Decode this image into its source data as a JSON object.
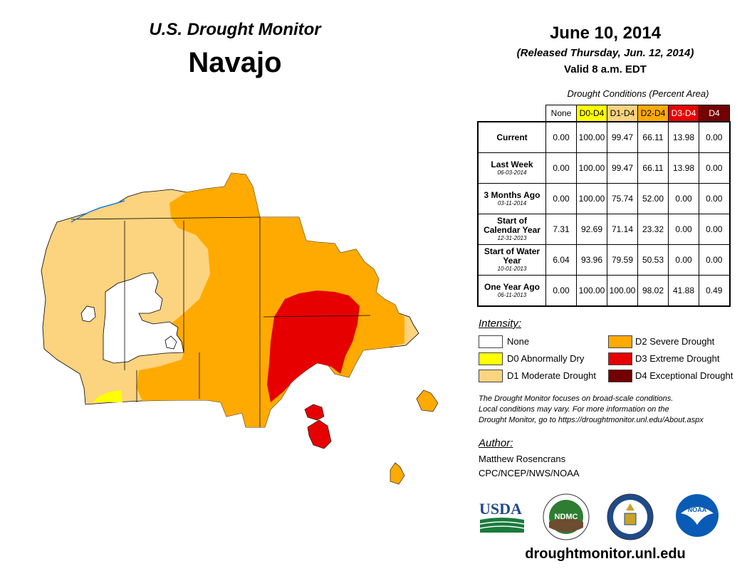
{
  "header": {
    "title": "U.S. Drought Monitor",
    "region": "Navajo"
  },
  "date_block": {
    "date": "June 10, 2014",
    "released": "(Released Thursday, Jun. 12, 2014)",
    "valid": "Valid 8 a.m. EDT"
  },
  "table": {
    "caption": "Drought Conditions (Percent Area)",
    "columns": [
      {
        "label": "None",
        "color": "#ffffff",
        "text_color": "#000000"
      },
      {
        "label": "D0-D4",
        "color": "#ffff00",
        "text_color": "#000000"
      },
      {
        "label": "D1-D4",
        "color": "#fcd37f",
        "text_color": "#000000"
      },
      {
        "label": "D2-D4",
        "color": "#ffaa00",
        "text_color": "#000000"
      },
      {
        "label": "D3-D4",
        "color": "#e60000",
        "text_color": "#ffffff"
      },
      {
        "label": "D4",
        "color": "#730000",
        "text_color": "#ffffff"
      }
    ],
    "rows": [
      {
        "label": "Current",
        "date": "",
        "values": [
          "0.00",
          "100.00",
          "99.47",
          "66.11",
          "13.98",
          "0.00"
        ]
      },
      {
        "label": "Last Week",
        "date": "06-03-2014",
        "values": [
          "0.00",
          "100.00",
          "99.47",
          "66.11",
          "13.98",
          "0.00"
        ]
      },
      {
        "label": "3 Months Ago",
        "date": "03-11-2014",
        "values": [
          "0.00",
          "100.00",
          "75.74",
          "52.00",
          "0.00",
          "0.00"
        ]
      },
      {
        "label": "Start of Calendar Year",
        "date": "12-31-2013",
        "values": [
          "7.31",
          "92.69",
          "71.14",
          "23.32",
          "0.00",
          "0.00"
        ]
      },
      {
        "label": "Start of Water Year",
        "date": "10-01-2013",
        "values": [
          "6.04",
          "93.96",
          "79.59",
          "50.53",
          "0.00",
          "0.00"
        ]
      },
      {
        "label": "One Year Ago",
        "date": "06-11-2013",
        "values": [
          "0.00",
          "100.00",
          "100.00",
          "98.02",
          "41.88",
          "0.49"
        ]
      }
    ]
  },
  "legend": {
    "heading": "Intensity:",
    "items": [
      {
        "label": "None",
        "color": "#ffffff"
      },
      {
        "label": "D0 Abnormally Dry",
        "color": "#ffff00"
      },
      {
        "label": "D1 Moderate Drought",
        "color": "#fcd37f"
      },
      {
        "label": "D2 Severe Drought",
        "color": "#ffaa00"
      },
      {
        "label": "D3 Extreme Drought",
        "color": "#e60000"
      },
      {
        "label": "D4 Exceptional Drought",
        "color": "#730000"
      }
    ]
  },
  "disclaimer": {
    "line1": "The Drought Monitor focuses on broad-scale conditions.",
    "line2": "Local conditions may vary. For more information on the",
    "line3": "Drought Monitor, go to https://droughtmonitor.unl.edu/About.aspx"
  },
  "author": {
    "heading": "Author:",
    "name": "Matthew Rosencrans",
    "org": "CPC/NCEP/NWS/NOAA"
  },
  "logos": {
    "usda": "USDA",
    "ndmc": "NDMC",
    "noaa": "NOAA"
  },
  "footer": {
    "url": "droughtmonitor.unl.edu"
  },
  "map_colors": {
    "none": "#ffffff",
    "d0": "#ffff00",
    "d1": "#fcd37f",
    "d2": "#ffaa00",
    "d3": "#e60000",
    "water": "#1e7fd8"
  }
}
